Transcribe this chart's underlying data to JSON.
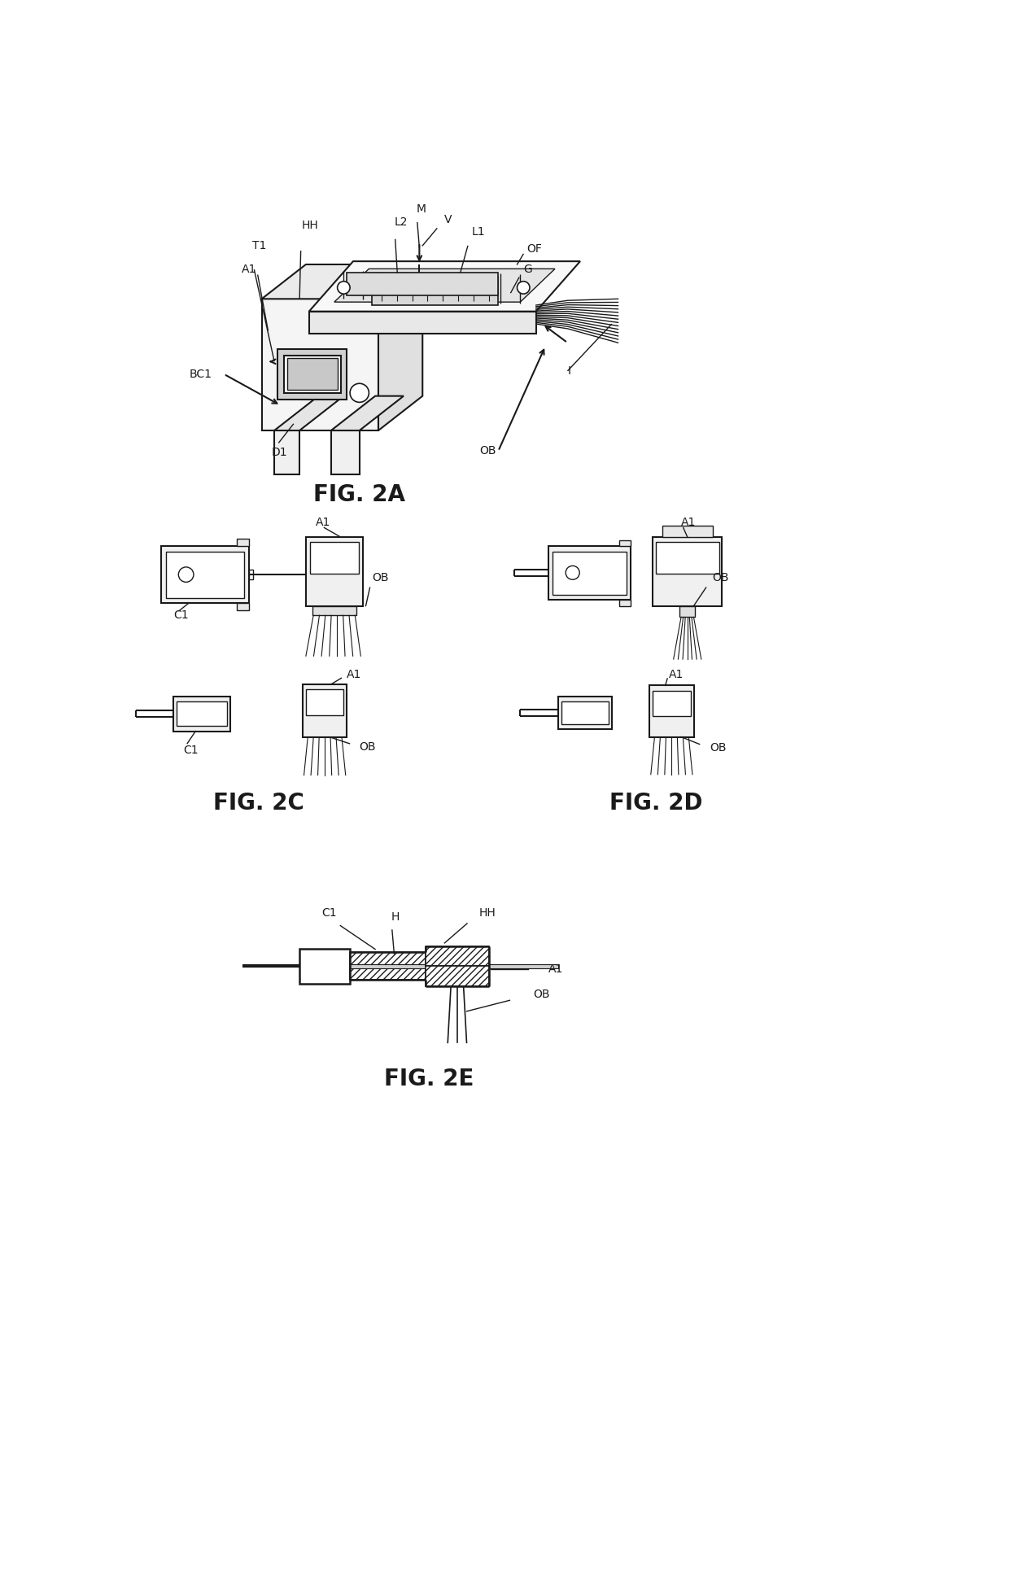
{
  "fig_labels": {
    "fig2a": "FIG. 2A",
    "fig2c": "FIG. 2C",
    "fig2d": "FIG. 2D",
    "fig2e": "FIG. 2E"
  },
  "background_color": "#ffffff",
  "line_color": "#1a1a1a",
  "font_size_labels": 10,
  "font_size_fig": 20
}
